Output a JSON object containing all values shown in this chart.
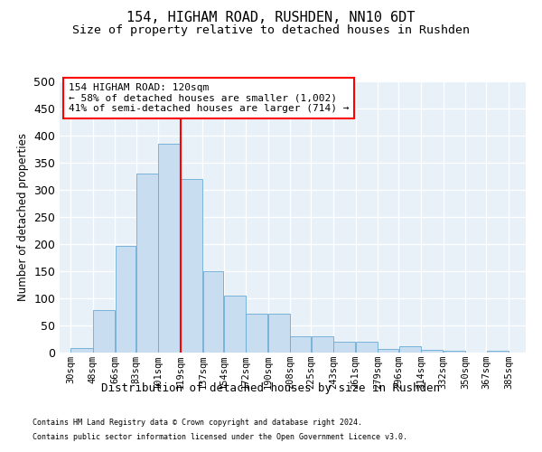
{
  "title1": "154, HIGHAM ROAD, RUSHDEN, NN10 6DT",
  "title2": "Size of property relative to detached houses in Rushden",
  "xlabel": "Distribution of detached houses by size in Rushden",
  "ylabel": "Number of detached properties",
  "bar_color": "#c8ddf0",
  "bar_edge_color": "#6aaad4",
  "vline_x": 119,
  "vline_color": "red",
  "annotation_title": "154 HIGHAM ROAD: 120sqm",
  "annotation_line1": "← 58% of detached houses are smaller (1,002)",
  "annotation_line2": "41% of semi-detached houses are larger (714) →",
  "tick_labels": [
    "30sqm",
    "48sqm",
    "66sqm",
    "83sqm",
    "101sqm",
    "119sqm",
    "137sqm",
    "154sqm",
    "172sqm",
    "190sqm",
    "208sqm",
    "225sqm",
    "243sqm",
    "261sqm",
    "279sqm",
    "296sqm",
    "314sqm",
    "332sqm",
    "350sqm",
    "367sqm",
    "385sqm"
  ],
  "bin_edges": [
    30,
    48,
    66,
    83,
    101,
    119,
    137,
    154,
    172,
    190,
    208,
    225,
    243,
    261,
    279,
    296,
    314,
    332,
    350,
    367,
    385
  ],
  "bar_heights": [
    8,
    78,
    197,
    330,
    385,
    320,
    150,
    105,
    72,
    72,
    30,
    30,
    20,
    20,
    7,
    12,
    5,
    3,
    0,
    3
  ],
  "ylim": [
    0,
    500
  ],
  "yticks": [
    0,
    50,
    100,
    150,
    200,
    250,
    300,
    350,
    400,
    450,
    500
  ],
  "footnote1": "Contains HM Land Registry data © Crown copyright and database right 2024.",
  "footnote2": "Contains public sector information licensed under the Open Government Licence v3.0.",
  "bg_color": "#e8f0f8",
  "grid_color": "#ffffff",
  "title1_fontsize": 11,
  "title2_fontsize": 9.5,
  "tick_fontsize": 7.5,
  "ylabel_fontsize": 8.5,
  "xlabel_fontsize": 9,
  "annot_fontsize": 8,
  "footnote_fontsize": 6
}
